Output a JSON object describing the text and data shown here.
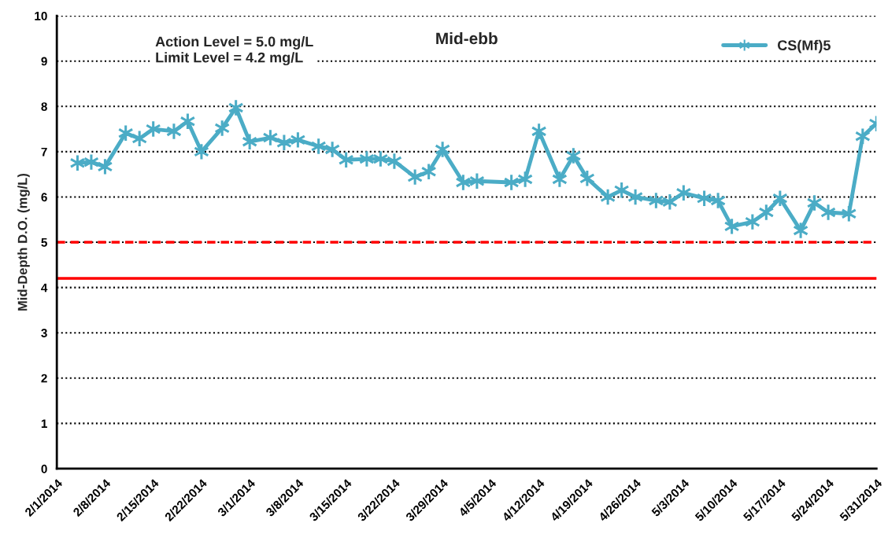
{
  "chart_data": {
    "type": "line",
    "title": "Mid-ebb",
    "ylabel": "Mid-Depth D.O. (mg/L)",
    "annotations": [
      "Action Level = 5.0 mg/L",
      "Limit Level = 4.2 mg/L"
    ],
    "x": [
      "2014-02-04",
      "2014-02-06",
      "2014-02-08",
      "2014-02-11",
      "2014-02-13",
      "2014-02-15",
      "2014-02-18",
      "2014-02-20",
      "2014-02-22",
      "2014-02-25",
      "2014-02-27",
      "2014-03-01",
      "2014-03-04",
      "2014-03-06",
      "2014-03-08",
      "2014-03-11",
      "2014-03-13",
      "2014-03-15",
      "2014-03-18",
      "2014-03-20",
      "2014-03-22",
      "2014-03-25",
      "2014-03-27",
      "2014-03-29",
      "2014-04-01",
      "2014-04-03",
      "2014-04-08",
      "2014-04-10",
      "2014-04-12",
      "2014-04-15",
      "2014-04-17",
      "2014-04-19",
      "2014-04-22",
      "2014-04-24",
      "2014-04-26",
      "2014-04-29",
      "2014-05-01",
      "2014-05-03",
      "2014-05-06",
      "2014-05-08",
      "2014-05-10",
      "2014-05-13",
      "2014-05-15",
      "2014-05-17",
      "2014-05-20",
      "2014-05-22",
      "2014-05-24",
      "2014-05-27",
      "2014-05-29",
      "2014-05-31"
    ],
    "series": [
      {
        "name": "CS(Mf)5",
        "color": "#4bacc6",
        "values": [
          6.75,
          6.77,
          6.67,
          7.41,
          7.29,
          7.5,
          7.45,
          7.67,
          7.0,
          7.52,
          7.97,
          7.22,
          7.31,
          7.2,
          7.26,
          7.12,
          7.05,
          6.82,
          6.84,
          6.84,
          6.79,
          6.44,
          6.56,
          7.05,
          6.32,
          6.35,
          6.32,
          6.39,
          7.45,
          6.39,
          6.91,
          6.41,
          6.0,
          6.15,
          6.0,
          5.92,
          5.89,
          6.09,
          5.97,
          5.92,
          5.35,
          5.45,
          5.66,
          5.97,
          5.26,
          5.87,
          5.66,
          5.63,
          7.34,
          7.62
        ]
      }
    ],
    "ref_lines": [
      {
        "axis": "y",
        "value": 5.0,
        "color": "#ff0000",
        "line_style": "dashed"
      },
      {
        "axis": "y",
        "value": 4.2,
        "color": "#ff0000",
        "line_style": "solid"
      }
    ],
    "xlim": [
      "2014-02-01",
      "2014-05-31"
    ],
    "xticks": [
      {
        "value": "2014-02-01",
        "label": "2/1/2014"
      },
      {
        "value": "2014-02-08",
        "label": "2/8/2014"
      },
      {
        "value": "2014-02-15",
        "label": "2/15/2014"
      },
      {
        "value": "2014-02-22",
        "label": "2/22/2014"
      },
      {
        "value": "2014-03-01",
        "label": "3/1/2014"
      },
      {
        "value": "2014-03-08",
        "label": "3/8/2014"
      },
      {
        "value": "2014-03-15",
        "label": "3/15/2014"
      },
      {
        "value": "2014-03-22",
        "label": "3/22/2014"
      },
      {
        "value": "2014-03-29",
        "label": "3/29/2014"
      },
      {
        "value": "2014-04-05",
        "label": "4/5/2014"
      },
      {
        "value": "2014-04-12",
        "label": "4/12/2014"
      },
      {
        "value": "2014-04-19",
        "label": "4/19/2014"
      },
      {
        "value": "2014-04-26",
        "label": "4/26/2014"
      },
      {
        "value": "2014-05-03",
        "label": "5/3/2014"
      },
      {
        "value": "2014-05-10",
        "label": "5/10/2014"
      },
      {
        "value": "2014-05-17",
        "label": "5/17/2014"
      },
      {
        "value": "2014-05-24",
        "label": "5/24/2014"
      },
      {
        "value": "2014-05-31",
        "label": "5/31/2014"
      }
    ],
    "ylim": [
      0,
      10
    ],
    "yticks": [
      0,
      1,
      2,
      3,
      4,
      5,
      6,
      7,
      8,
      9,
      10
    ],
    "grid": "y",
    "legend": "top right",
    "marker": "cross",
    "line_style": "solid"
  }
}
